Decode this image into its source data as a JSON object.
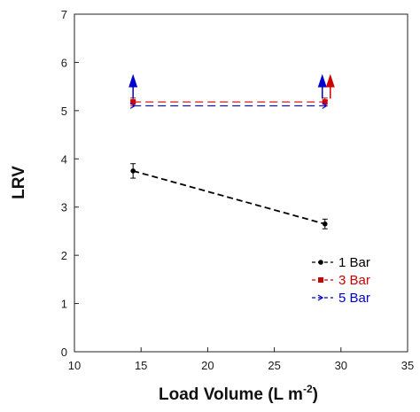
{
  "chart_data": {
    "type": "line",
    "xlabel": "Load Volume (L m",
    "xlabel_sup": "-2",
    "xlabel_end": ")",
    "ylabel": "LRV",
    "xlim": [
      10,
      35
    ],
    "ylim": [
      0,
      7
    ],
    "xticks": [
      10,
      15,
      20,
      25,
      30,
      35
    ],
    "yticks": [
      0,
      1,
      2,
      3,
      4,
      5,
      6,
      7
    ],
    "grid": false,
    "legend_position": "lower-right",
    "series": [
      {
        "name": "1 Bar",
        "color": "#000000",
        "marker": "circle",
        "style": "dashed",
        "x": [
          14.4,
          28.8
        ],
        "y": [
          3.75,
          2.65
        ],
        "err": [
          0.15,
          0.1
        ]
      },
      {
        "name": "3 Bar",
        "color": "#cc0000",
        "marker": "square",
        "style": "dashed",
        "x": [
          14.4,
          28.8
        ],
        "y": [
          5.18,
          5.18
        ],
        "err": [
          0.08,
          0.08
        ]
      },
      {
        "name": "5 Bar",
        "color": "#0000cc",
        "marker": "arrow",
        "style": "dashed",
        "x": [
          14.4,
          28.8
        ],
        "y": [
          5.1,
          5.1
        ],
        "err": [
          0,
          0
        ]
      }
    ],
    "annotations": [
      {
        "type": "up-arrow",
        "x": 14.4,
        "y_from": 5.25,
        "y_to": 5.65,
        "color": "#0000cc"
      },
      {
        "type": "up-arrow",
        "x": 28.6,
        "y_from": 5.25,
        "y_to": 5.65,
        "color": "#0000cc"
      },
      {
        "type": "up-arrow",
        "x": 29.2,
        "y_from": 5.25,
        "y_to": 5.65,
        "color": "#cc0000"
      }
    ]
  }
}
